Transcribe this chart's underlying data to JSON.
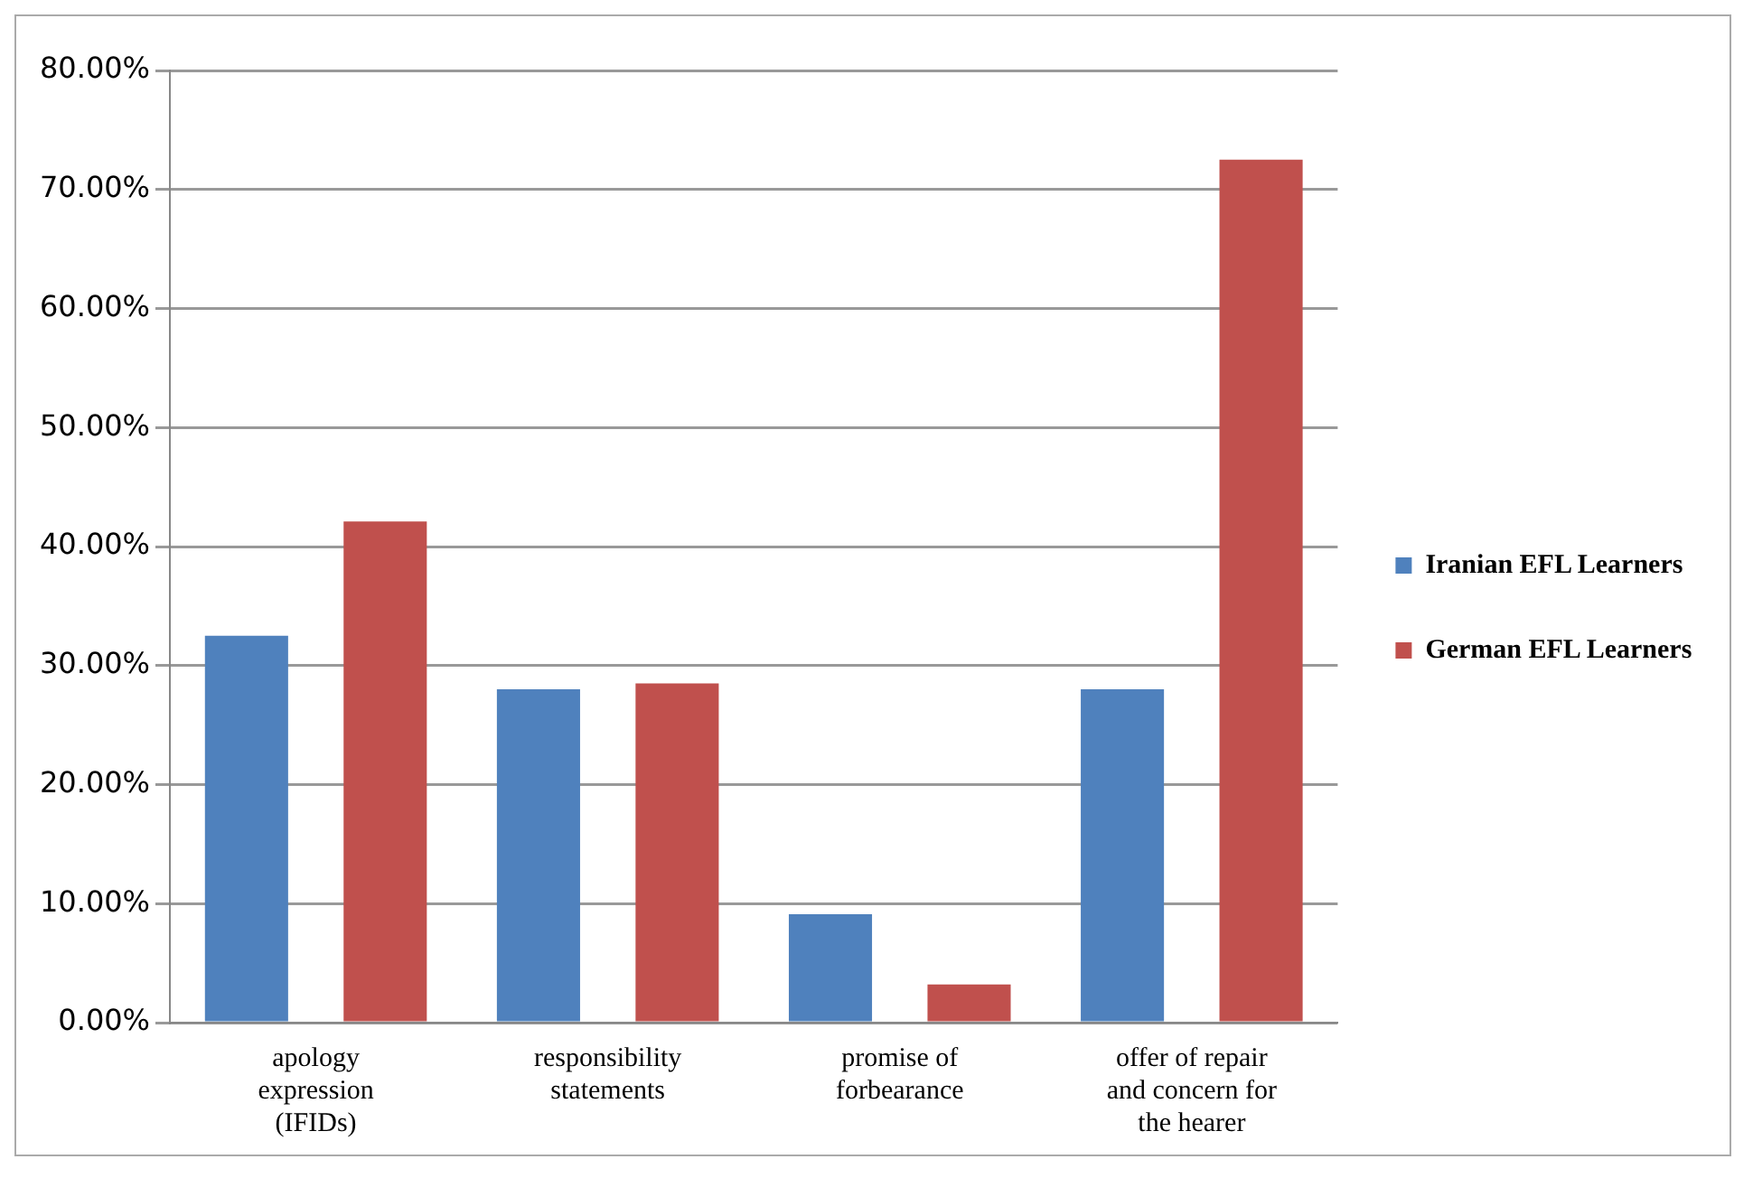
{
  "chart_data": {
    "type": "bar",
    "categories": [
      [
        "apology",
        "expression",
        "(IFIDs)"
      ],
      [
        "responsibility",
        "statements"
      ],
      [
        "promise of",
        "forbearance"
      ],
      [
        "offer of repair",
        "and concern for",
        "the hearer"
      ]
    ],
    "series": [
      {
        "name": "Iranian EFL Learners",
        "color": "#4f81bd",
        "values": [
          32.5,
          28,
          9.1,
          28
        ]
      },
      {
        "name": "German EFL Learners",
        "color": "#c0504d",
        "values": [
          42.1,
          28.5,
          3.2,
          72.5
        ]
      }
    ],
    "ylim": [
      0,
      80
    ],
    "yticks": [
      {
        "value": 0,
        "label": "0.00%"
      },
      {
        "value": 10,
        "label": "10.00%"
      },
      {
        "value": 20,
        "label": "20.00%"
      },
      {
        "value": 30,
        "label": "30.00%"
      },
      {
        "value": 40,
        "label": "40.00%"
      },
      {
        "value": 50,
        "label": "50.00%"
      },
      {
        "value": 60,
        "label": "60.00%"
      },
      {
        "value": 70,
        "label": "70.00%"
      },
      {
        "value": 80,
        "label": "80.00%"
      }
    ],
    "grid": "y",
    "legend": "right"
  }
}
